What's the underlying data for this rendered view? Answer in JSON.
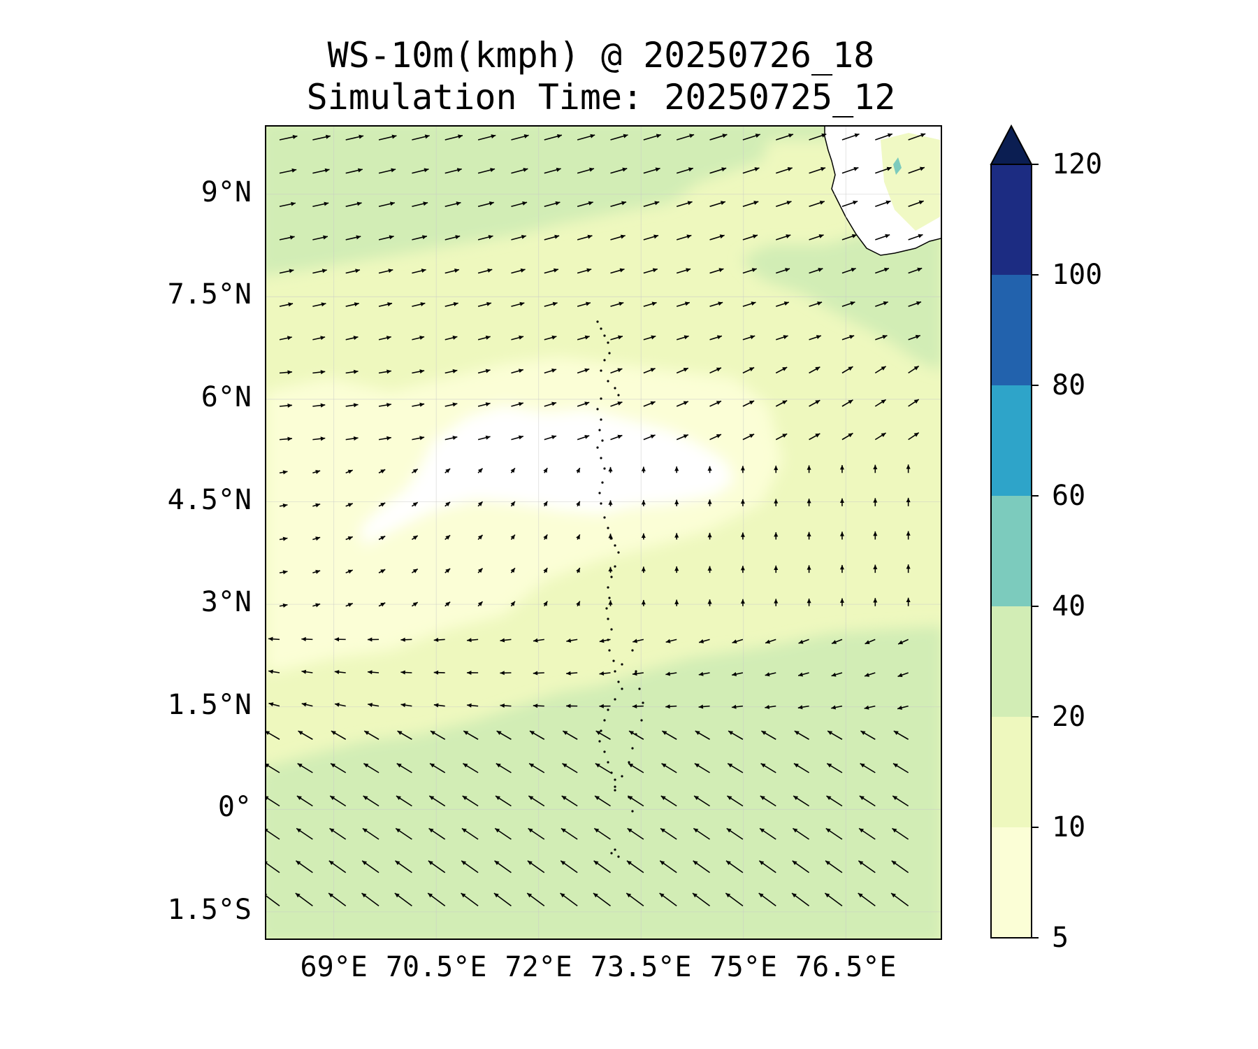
{
  "title": {
    "line1": "WS-10m(kmph) @ 20250726_18",
    "line2": "Simulation Time: 20250725_12"
  },
  "map": {
    "lat_labels": [
      "9°N",
      "7.5°N",
      "6°N",
      "4.5°N",
      "3°N",
      "1.5°N",
      "0°",
      "1.5°S"
    ],
    "lon_labels": [
      "69°E",
      "70.5°E",
      "72°E",
      "73.5°E",
      "75°E",
      "76.5°E"
    ],
    "extent": {
      "lon_min": 68.0,
      "lon_max": 77.9,
      "lat_min": -1.9,
      "lat_max": 10.0
    },
    "field_colors": {
      "calm": "#ffffff",
      "light": "#fbfed6",
      "moderate": "#eef8be",
      "fresh": "#d2edb5"
    },
    "coastline_color": "#000000",
    "vector_color": "#000000"
  },
  "colorbar": {
    "levels": [
      "5",
      "10",
      "20",
      "40",
      "60",
      "80",
      "100",
      "120"
    ],
    "colors": [
      "#fbfed6",
      "#eef8be",
      "#d2edb5",
      "#7ccbbd",
      "#2ea4c9",
      "#2262ad",
      "#1c2c82",
      "#0b1e52"
    ],
    "extend": "max"
  }
}
